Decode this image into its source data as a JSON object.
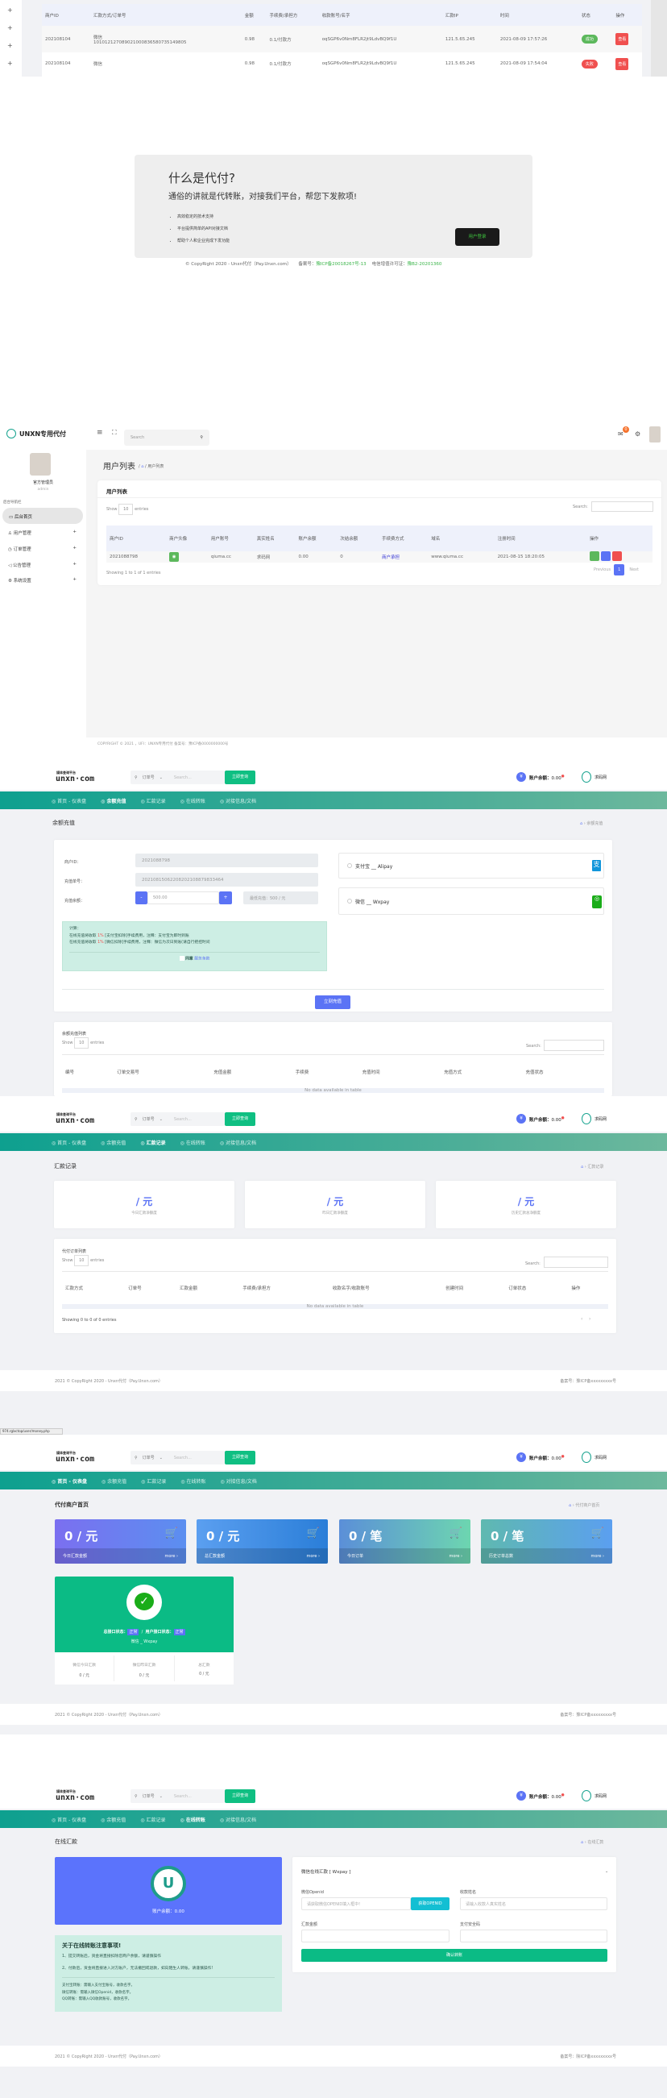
{
  "colors": {
    "teal_nav": "#14a190",
    "primary": "#5b73f5",
    "success": "#5cb85c",
    "danger": "#f0504f",
    "green": "#0bbb85"
  },
  "s1": {
    "sidebar_icons": [
      "plus-icon",
      "plus-icon",
      "plus-icon",
      "plus-icon"
    ],
    "columns": [
      "商户ID",
      "汇款方式/订单号",
      "金额",
      "手续费/承担方",
      "收款账号/名字",
      "汇款IP",
      "时间",
      "状态",
      "操作"
    ],
    "rows": [
      {
        "id": "202108104",
        "method": "微信",
        "order": "101012127089021000836580735149805",
        "amount": "0.98",
        "fee": "0.1/付款方",
        "account": "oqSGP6v0Nm8FLR2jt9LdvBQ9f1U",
        "ip": "121.5.65.245",
        "time": "2021-08-09 17:57:26",
        "status": "成功",
        "action": "查看"
      },
      {
        "id": "202108104",
        "method": "微信",
        "order": "",
        "amount": "0.98",
        "fee": "0.1/付款方",
        "account": "oqSGP6v0Nm8FLR2jt9LdvBQ9f1U",
        "ip": "121.5.65.245",
        "time": "2021-08-09 17:54:04",
        "status": "失败",
        "action": "查看"
      }
    ]
  },
  "s2": {
    "title": "什么是代付?",
    "subtitle": "通俗的讲就是代转账，对接我们平台，帮您下发款项!",
    "bullets": [
      "高效稳定的技术支持",
      "平台提供简单的API对接文档",
      "帮助个人和企业完成下发功能"
    ],
    "login_button": "用户登录",
    "copyright": "© CopyRight 2020 - Unxn代付（Pay.Unxn.com）",
    "icp_label": "备案号：",
    "icp": "豫ICP备20018267号-13",
    "license_label": "电信增值许可证：",
    "license": "豫B2-20201360"
  },
  "s3": {
    "brand": "UNXN专用代付",
    "search_placeholder": "Search",
    "notification_count": "0",
    "user_name": "官方管理员",
    "user_role": "admin",
    "nav_heading": "后台导航栏",
    "menu": [
      {
        "label": "后台首页",
        "icon": "monitor-icon"
      },
      {
        "label": "用户管理",
        "icon": "user-icon"
      },
      {
        "label": "订单管理",
        "icon": "clock-icon"
      },
      {
        "label": "公告管理",
        "icon": "speaker-icon"
      },
      {
        "label": "系统设置",
        "icon": "gear-icon"
      }
    ],
    "page_title": "用户列表",
    "breadcrumb": "用户列表",
    "card_title": "用户列表",
    "show": "Show",
    "entries_value": "10",
    "entries": "entries",
    "search_label": "Search:",
    "columns": [
      "商户ID",
      "商户头像",
      "用户账号",
      "真实姓名",
      "账户余额",
      "次结余额",
      "手续费方式",
      "域名",
      "注册时间",
      "操作"
    ],
    "row": {
      "id": "2021088798",
      "account": "qiuma.cc",
      "name": "求码网",
      "balance": "0.00",
      "settle": "0",
      "fee_mode": "商户承担",
      "domain": "www.qiuma.cc",
      "reg_time": "2021-08-15 18:20:05"
    },
    "showing": "Showing 1 to 1 of 1 entries",
    "prev": "Previous",
    "page": "1",
    "next": "Next",
    "footer": "COPYRIGHT © 2021 ，UFI：UNXN专用代付   备案号：豫ICP备0000000000号"
  },
  "header": {
    "logo_small": "媒体查询平台",
    "logo": "unxn·com",
    "search_type": "订单号",
    "search_placeholder": "Search...",
    "search_button": "立即查询",
    "balance_label": "账户余额：",
    "balance": "0.00",
    "site_name": "求码网"
  },
  "nav": [
    "首页 - 仪表盘",
    "余额充值",
    "汇款记录",
    "在线转账",
    "对接信息/文档"
  ],
  "s4": {
    "title": "余额充值",
    "breadcrumb": "余额充值",
    "labels": [
      "商户ID：",
      "充值单号：",
      "充值余额："
    ],
    "merchant_id": "2021088798",
    "order_no": "20210815062208202108879833464",
    "amount": "500.00",
    "minus": "-",
    "plus": "+",
    "min_note": "最低充值：500 / 元",
    "calc_title": "计算：",
    "calc_lines": [
      {
        "pre": "在线充值将收取 ",
        "rate": "1%",
        "post": " [支付宝扣除]手续费用，注释：支付宝为即时到账"
      },
      {
        "pre": "在线充值将收取 ",
        "rate": "1%",
        "post": " [微信扣除]手续费用，注释：微信为次日到账(请自行把控时间"
      }
    ],
    "agree": "同意",
    "terms": "服务条款",
    "pay_options": [
      {
        "label": "支付宝 __ Alipay",
        "icon": "alipay-icon",
        "color": "#1296db"
      },
      {
        "label": "微信 __ Wxpay",
        "icon": "wechat-icon",
        "color": "#1aad19"
      }
    ],
    "submit": "立刻充值",
    "list_title": "余额充值列表",
    "show": "Show",
    "entries_value": "10",
    "entries": "entries",
    "search_label": "Search:",
    "columns": [
      "编号",
      "订单交易号",
      "充值金额",
      "手续费",
      "充值时间",
      "充值方式",
      "充值状态"
    ],
    "empty": "No data available in table"
  },
  "s5": {
    "title": "汇款记录",
    "breadcrumb": "汇款记录",
    "stats": [
      {
        "value": "/ 元",
        "label": "今日汇款净额度"
      },
      {
        "value": "/ 元",
        "label": "昨日汇款净额度"
      },
      {
        "value": "/ 元",
        "label": "历史汇款总净额度"
      }
    ],
    "list_title": "代付订单列表",
    "show": "Show",
    "entries_value": "10",
    "entries": "entries",
    "search_label": "Search:",
    "columns": [
      "汇款方式",
      "订单号",
      "汇款金额",
      "手续费/承担方",
      "收款名字/收款账号",
      "创建时间",
      "订单状态",
      "操作"
    ],
    "empty": "No data available in table",
    "showing": "Showing 0 to 0 of 0 entries",
    "footer_left": "2021 © CopyRight 2020 - Unxn代付（Pay.Unxn.com）",
    "footer_right": "备案号：豫ICP备xxxxxxxxx号",
    "status_url": "974.rglxctop/user/money.php"
  },
  "s6": {
    "title": "代付商户首页",
    "breadcrumb": "代付商户首页",
    "cards": [
      {
        "value": "0 / 元",
        "label": "今日汇款金额",
        "more": "more ›"
      },
      {
        "value": "0 / 元",
        "label": "总汇款金额",
        "more": "more ›"
      },
      {
        "value": "0 / 笔",
        "label": "今日订单",
        "more": "more ›"
      },
      {
        "value": "0 / 笔",
        "label": "历史订单总数",
        "more": "more ›"
      }
    ],
    "wx": {
      "sys_label": "总接口状态：",
      "sys_status": "正常",
      "user_label": "用户接口状态：",
      "user_status": "正常",
      "name": "微信 _ Wxpay",
      "stats": [
        {
          "label": "微信今日汇款",
          "value": "0 / 元"
        },
        {
          "label": "微信昨日汇款",
          "value": "0 / 元"
        },
        {
          "label": "总汇款",
          "value": "0 / 元"
        }
      ]
    },
    "footer_left": "2021 © CopyRight 2020 - Unxn代付（Pay.Unxn.com）",
    "footer_right": "备案号：豫ICP备xxxxxxxxx号"
  },
  "s7": {
    "title": "在线汇款",
    "breadcrumb": "在线汇款",
    "balance": "账户余额：0.00",
    "notice_title": "关于在线转账注意事项!",
    "notice_lines": [
      "1、提交转账后，资金将直接扣除您商户余额，请谨慎操作",
      "2、付款后，资金将直接进入对方账户，无法撤回或退款，如向陌生人转账，请谨慎操作!"
    ],
    "notice_extra": [
      "支付宝转账：需输入支付宝账号，收款名字。",
      "微信转账：需输入微信Openid，收款名字。",
      "QQ转账：需输入QQ收款账号，收款名字。"
    ],
    "form_title": "微信在线汇款 [ Wxpay ]",
    "openid_label": "微信Openid",
    "openid_placeholder": "请获取微信OPENID填入框中!",
    "openid_button": "获取OPENID",
    "name_label": "收款姓名",
    "name_placeholder": "请输入收款人真实姓名",
    "amount_label": "汇款金额",
    "password_label": "支付安全码",
    "submit": "确认转账",
    "footer_left": "2021 © CopyRight 2020 - Unxn代付（Pay.Unxn.com）",
    "footer_right": "备案号：陕ICP备xxxxxxxxx号"
  }
}
